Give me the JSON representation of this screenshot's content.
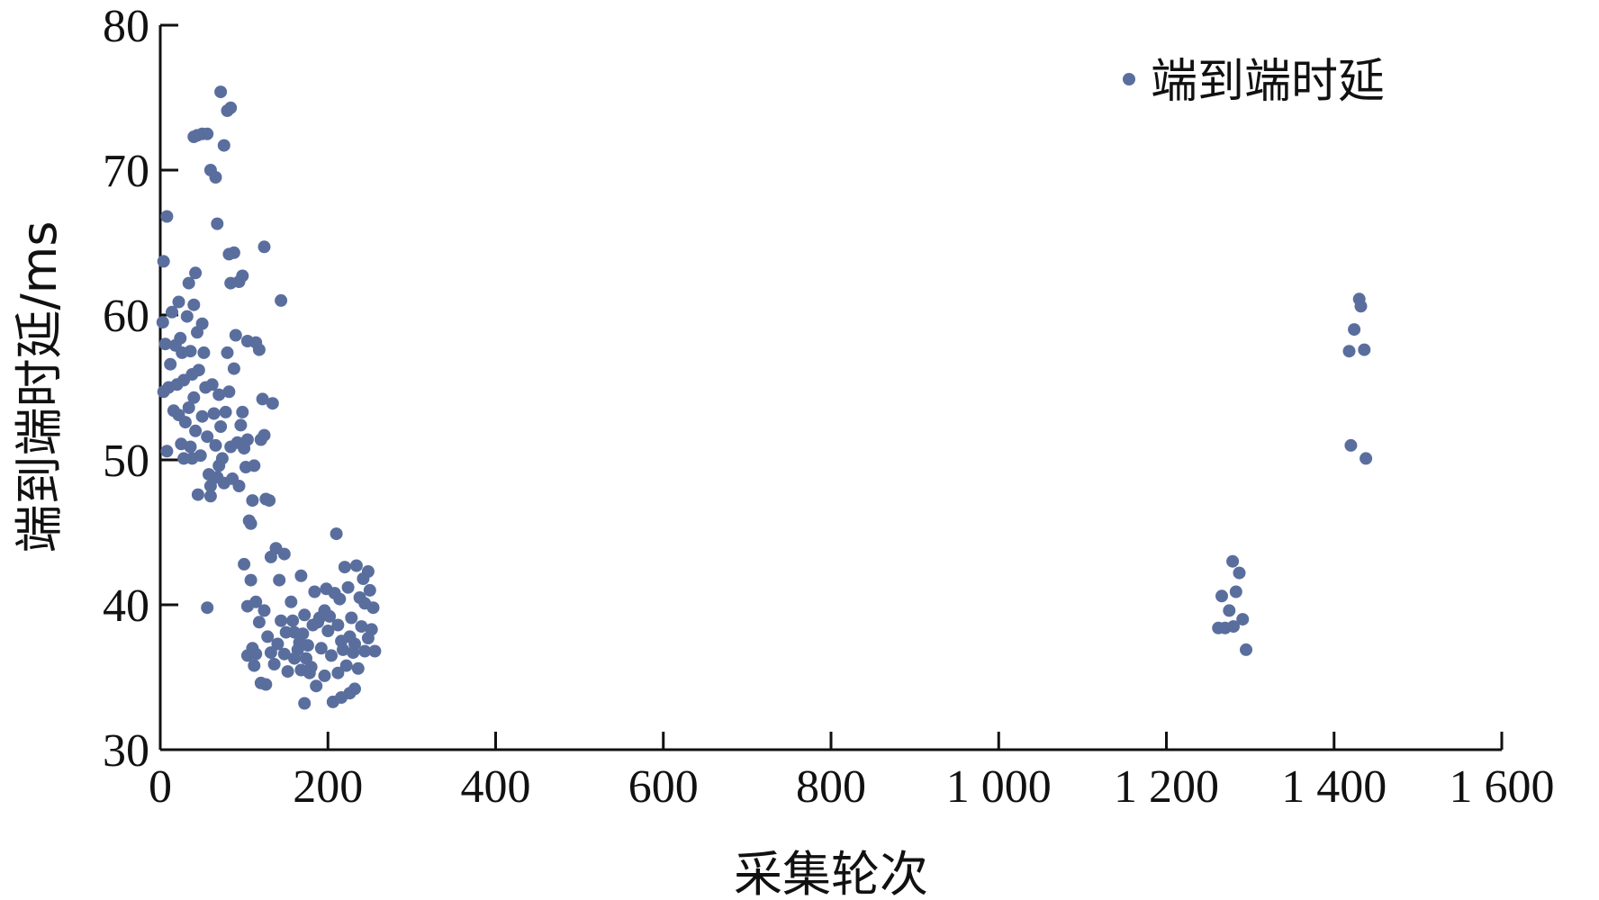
{
  "chart_data": {
    "type": "scatter",
    "title": "",
    "xlabel": "采集轮次",
    "ylabel": "端到端时延/ms",
    "xlim": [
      0,
      1600
    ],
    "ylim": [
      30,
      80
    ],
    "xticks": [
      {
        "value": 0,
        "label": "0"
      },
      {
        "value": 200,
        "label": "200"
      },
      {
        "value": 400,
        "label": "400"
      },
      {
        "value": 600,
        "label": "600"
      },
      {
        "value": 800,
        "label": "800"
      },
      {
        "value": 1000,
        "label": "1 000"
      },
      {
        "value": 1200,
        "label": "1 200"
      },
      {
        "value": 1400,
        "label": "1 400"
      },
      {
        "value": 1600,
        "label": "1 600"
      }
    ],
    "yticks": [
      {
        "value": 30,
        "label": "30"
      },
      {
        "value": 40,
        "label": "40"
      },
      {
        "value": 50,
        "label": "50"
      },
      {
        "value": 60,
        "label": "60"
      },
      {
        "value": 70,
        "label": "70"
      },
      {
        "value": 80,
        "label": "80"
      }
    ],
    "grid": false,
    "legend_position": "top-right",
    "series": [
      {
        "name": "端到端时延",
        "color": "#5a6e9e",
        "points": [
          [
            4,
            63.7
          ],
          [
            8,
            66.8
          ],
          [
            3,
            59.5
          ],
          [
            6,
            58.0
          ],
          [
            10,
            55.0
          ],
          [
            4,
            54.7
          ],
          [
            8,
            50.6
          ],
          [
            12,
            56.6
          ],
          [
            14,
            60.2
          ],
          [
            18,
            57.9
          ],
          [
            20,
            55.2
          ],
          [
            16,
            53.4
          ],
          [
            22,
            60.9
          ],
          [
            24,
            58.4
          ],
          [
            26,
            57.4
          ],
          [
            28,
            55.5
          ],
          [
            22,
            53.1
          ],
          [
            25,
            51.1
          ],
          [
            28,
            50.1
          ],
          [
            30,
            52.6
          ],
          [
            32,
            59.9
          ],
          [
            34,
            62.2
          ],
          [
            36,
            57.5
          ],
          [
            38,
            55.9
          ],
          [
            34,
            53.6
          ],
          [
            36,
            50.9
          ],
          [
            38,
            50.1
          ],
          [
            40,
            60.7
          ],
          [
            42,
            62.9
          ],
          [
            44,
            58.8
          ],
          [
            46,
            56.2
          ],
          [
            40,
            54.3
          ],
          [
            42,
            52.0
          ],
          [
            45,
            47.6
          ],
          [
            48,
            50.3
          ],
          [
            50,
            59.4
          ],
          [
            52,
            57.4
          ],
          [
            54,
            55.0
          ],
          [
            50,
            53.0
          ],
          [
            56,
            51.6
          ],
          [
            58,
            49.0
          ],
          [
            60,
            48.2
          ],
          [
            62,
            55.2
          ],
          [
            64,
            53.2
          ],
          [
            66,
            51.0
          ],
          [
            60,
            47.5
          ],
          [
            68,
            48.8
          ],
          [
            70,
            54.5
          ],
          [
            72,
            52.3
          ],
          [
            74,
            50.1
          ],
          [
            70,
            49.6
          ],
          [
            76,
            48.4
          ],
          [
            78,
            53.3
          ],
          [
            80,
            57.4
          ],
          [
            82,
            54.7
          ],
          [
            84,
            50.9
          ],
          [
            86,
            48.7
          ],
          [
            88,
            56.3
          ],
          [
            90,
            58.6
          ],
          [
            92,
            51.2
          ],
          [
            94,
            48.2
          ],
          [
            96,
            52.4
          ],
          [
            98,
            53.3
          ],
          [
            100,
            50.8
          ],
          [
            102,
            49.5
          ],
          [
            104,
            51.4
          ],
          [
            106,
            45.8
          ],
          [
            108,
            45.6
          ],
          [
            110,
            47.2
          ],
          [
            112,
            49.6
          ],
          [
            114,
            58.1
          ],
          [
            118,
            57.6
          ],
          [
            120,
            51.4
          ],
          [
            122,
            54.2
          ],
          [
            124,
            51.7
          ],
          [
            126,
            47.3
          ],
          [
            130,
            47.2
          ],
          [
            134,
            53.9
          ],
          [
            40,
            72.3
          ],
          [
            44,
            72.4
          ],
          [
            50,
            72.5
          ],
          [
            56,
            72.5
          ],
          [
            60,
            70.0
          ],
          [
            66,
            69.5
          ],
          [
            72,
            75.4
          ],
          [
            76,
            71.7
          ],
          [
            80,
            74.1
          ],
          [
            84,
            74.3
          ],
          [
            68,
            66.3
          ],
          [
            82,
            64.2
          ],
          [
            88,
            64.3
          ],
          [
            84,
            62.2
          ],
          [
            94,
            62.3
          ],
          [
            98,
            62.7
          ],
          [
            104,
            58.2
          ],
          [
            124,
            64.7
          ],
          [
            144,
            61.0
          ],
          [
            56,
            39.8
          ],
          [
            168,
            42.0
          ],
          [
            100,
            42.8
          ],
          [
            108,
            41.7
          ],
          [
            114,
            40.2
          ],
          [
            104,
            39.9
          ],
          [
            110,
            37.0
          ],
          [
            114,
            36.6
          ],
          [
            120,
            34.6
          ],
          [
            126,
            34.5
          ],
          [
            132,
            43.3
          ],
          [
            138,
            43.9
          ],
          [
            142,
            41.7
          ],
          [
            148,
            43.5
          ],
          [
            104,
            36.5
          ],
          [
            112,
            35.8
          ],
          [
            118,
            38.8
          ],
          [
            124,
            39.6
          ],
          [
            128,
            37.8
          ],
          [
            132,
            36.7
          ],
          [
            136,
            35.9
          ],
          [
            140,
            37.3
          ],
          [
            144,
            38.9
          ],
          [
            148,
            36.6
          ],
          [
            152,
            35.4
          ],
          [
            156,
            40.2
          ],
          [
            160,
            38.1
          ],
          [
            164,
            36.9
          ],
          [
            168,
            35.5
          ],
          [
            172,
            39.3
          ],
          [
            176,
            37.2
          ],
          [
            180,
            35.7
          ],
          [
            184,
            40.9
          ],
          [
            188,
            38.8
          ],
          [
            192,
            37.0
          ],
          [
            196,
            39.6
          ],
          [
            200,
            38.2
          ],
          [
            204,
            36.5
          ],
          [
            208,
            40.8
          ],
          [
            212,
            38.6
          ],
          [
            216,
            37.5
          ],
          [
            220,
            42.6
          ],
          [
            224,
            41.2
          ],
          [
            228,
            39.1
          ],
          [
            232,
            37.3
          ],
          [
            236,
            35.6
          ],
          [
            240,
            38.5
          ],
          [
            244,
            40.1
          ],
          [
            248,
            42.3
          ],
          [
            252,
            38.3
          ],
          [
            256,
            36.8
          ],
          [
            234,
            42.7
          ],
          [
            242,
            41.8
          ],
          [
            250,
            41.0
          ],
          [
            210,
            44.9
          ],
          [
            172,
            33.2
          ],
          [
            206,
            33.3
          ],
          [
            216,
            33.6
          ],
          [
            226,
            33.9
          ],
          [
            232,
            34.2
          ],
          [
            178,
            35.3
          ],
          [
            186,
            34.4
          ],
          [
            196,
            35.1
          ],
          [
            212,
            35.3
          ],
          [
            222,
            35.8
          ],
          [
            230,
            36.7
          ],
          [
            150,
            38.1
          ],
          [
            158,
            38.9
          ],
          [
            166,
            37.4
          ],
          [
            174,
            36.3
          ],
          [
            182,
            38.6
          ],
          [
            190,
            39.1
          ],
          [
            198,
            41.1
          ],
          [
            202,
            39.2
          ],
          [
            214,
            40.4
          ],
          [
            238,
            40.5
          ],
          [
            244,
            36.8
          ],
          [
            254,
            39.8
          ],
          [
            248,
            37.7
          ],
          [
            226,
            37.8
          ],
          [
            218,
            36.9
          ],
          [
            160,
            36.3
          ],
          [
            170,
            38.0
          ],
          [
            1262,
            38.4
          ],
          [
            1266,
            40.6
          ],
          [
            1270,
            38.4
          ],
          [
            1275,
            39.6
          ],
          [
            1279,
            43.0
          ],
          [
            1283,
            40.9
          ],
          [
            1287,
            42.2
          ],
          [
            1291,
            39.0
          ],
          [
            1295,
            36.9
          ],
          [
            1280,
            38.5
          ],
          [
            1418,
            57.5
          ],
          [
            1424,
            59.0
          ],
          [
            1430,
            61.1
          ],
          [
            1432,
            60.6
          ],
          [
            1436,
            57.6
          ],
          [
            1420,
            51.0
          ],
          [
            1438,
            50.1
          ]
        ]
      }
    ]
  }
}
